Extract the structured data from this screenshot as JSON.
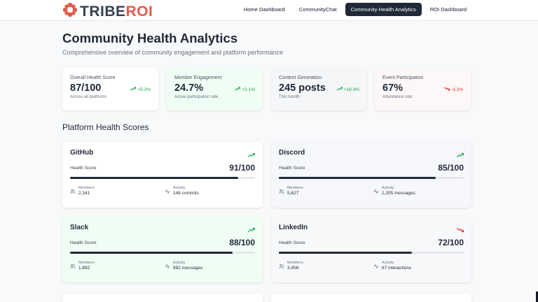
{
  "brand": {
    "part1": "TRIBE",
    "part2": "ROI"
  },
  "nav": [
    {
      "label": "Home Dashboard",
      "active": false
    },
    {
      "label": "CommunityChat",
      "active": false
    },
    {
      "label": "Community Health Analytics",
      "active": true
    },
    {
      "label": "ROI Dashboard",
      "active": false
    }
  ],
  "header": {
    "title": "Community Health Analytics",
    "subtitle": "Comprehensive overview of community engagement and platform performance"
  },
  "stats": [
    {
      "label": "Overall Health Score",
      "value": "87/100",
      "sub": "Across all platforms",
      "trend": "+5.2%",
      "direction": "up",
      "bg": "#ffffff"
    },
    {
      "label": "Member Engagement",
      "value": "24.7%",
      "sub": "Active participation rate",
      "trend": "+2.1%",
      "direction": "up",
      "bg": "#f0fdf4"
    },
    {
      "label": "Content Generation",
      "value": "245 posts",
      "sub": "This month",
      "trend": "+18.3%",
      "direction": "up",
      "bg": "#f4f6f8"
    },
    {
      "label": "Event Participation",
      "value": "67%",
      "sub": "Attendance rate",
      "trend": "-3.2%",
      "direction": "down",
      "bg": "#fdf8f8"
    }
  ],
  "section_title": "Platform Health Scores",
  "health_label": "Health Score",
  "members_label": "Members",
  "activity_label": "Activity",
  "platforms": [
    {
      "name": "GitHub",
      "score": "91/100",
      "score_pct": 0.91,
      "members": "2,341",
      "activity": "148 commits",
      "direction": "up",
      "bg": "#ffffff"
    },
    {
      "name": "Discord",
      "score": "85/100",
      "score_pct": 0.85,
      "members": "5,627",
      "activity": "1,205 messages",
      "direction": "up",
      "bg": "#f6f7fb"
    },
    {
      "name": "Slack",
      "score": "88/100",
      "score_pct": 0.88,
      "members": "1,892",
      "activity": "892 messages",
      "direction": "up",
      "bg": "#f0fdf4"
    },
    {
      "name": "LinkedIn",
      "score": "72/100",
      "score_pct": 0.72,
      "members": "3,456",
      "activity": "67 interactions",
      "direction": "down",
      "bg": "#f7f8fa"
    }
  ],
  "colors": {
    "up": "#16a34a",
    "down": "#dc2626",
    "brand_accent": "#e35a4d",
    "dark": "#1f2937"
  }
}
